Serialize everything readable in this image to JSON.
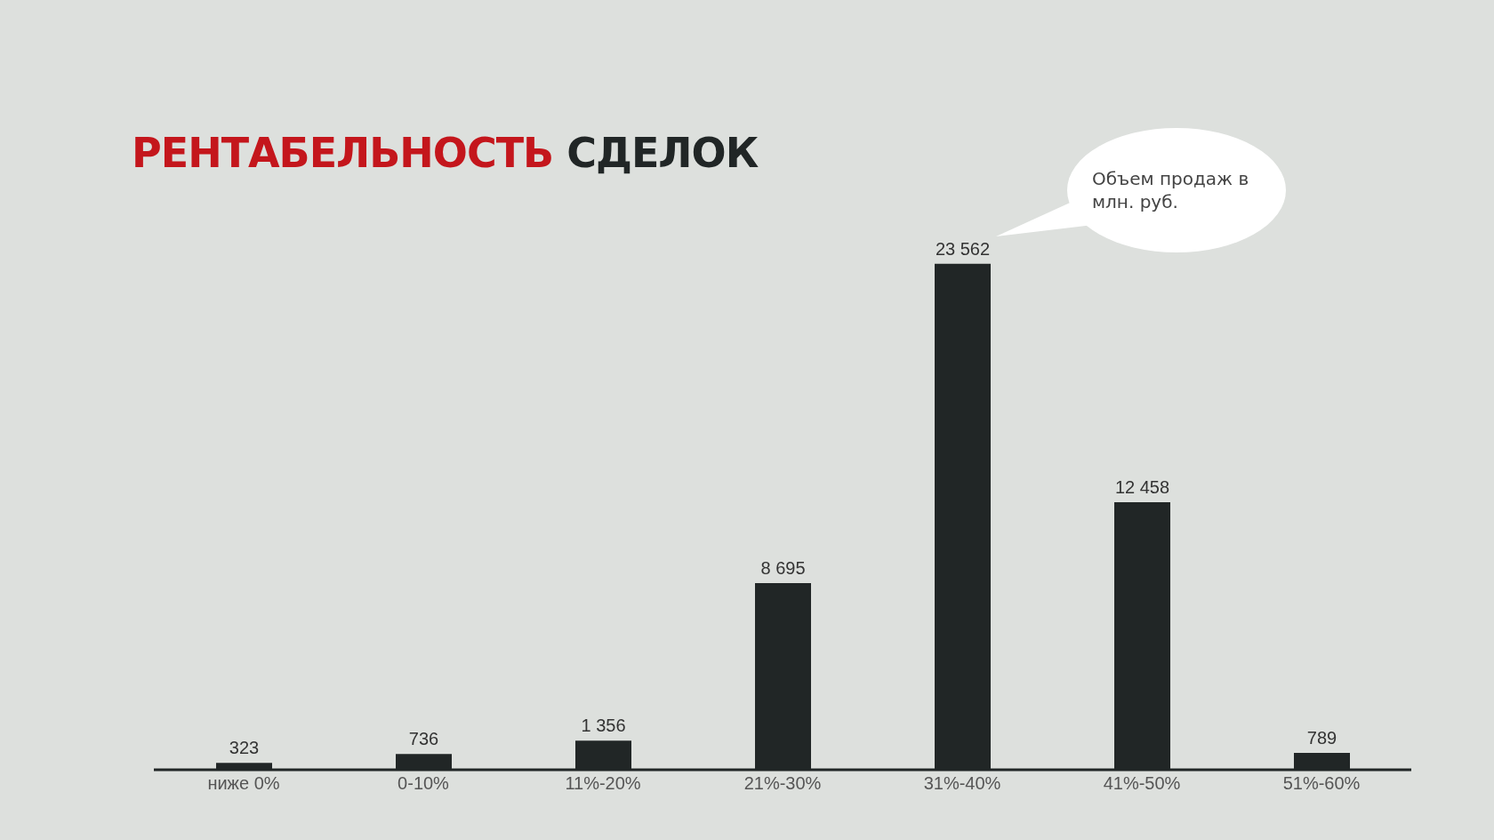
{
  "chart_data": {
    "type": "bar",
    "title": "РЕНТАБЕЛЬНОСТЬ СДЕЛОК",
    "categories": [
      "ниже 0%",
      "0-10%",
      "11%-20%",
      "21%-30%",
      "31%-40%",
      "41%-50%",
      "51%-60%"
    ],
    "values": [
      323,
      736,
      1356,
      8695,
      23562,
      12458,
      789
    ],
    "color": "#212626",
    "data_labels": true,
    "tick_labels": "x",
    "annotations": [
      "Объем продаж в млн. руб."
    ]
  }
}
